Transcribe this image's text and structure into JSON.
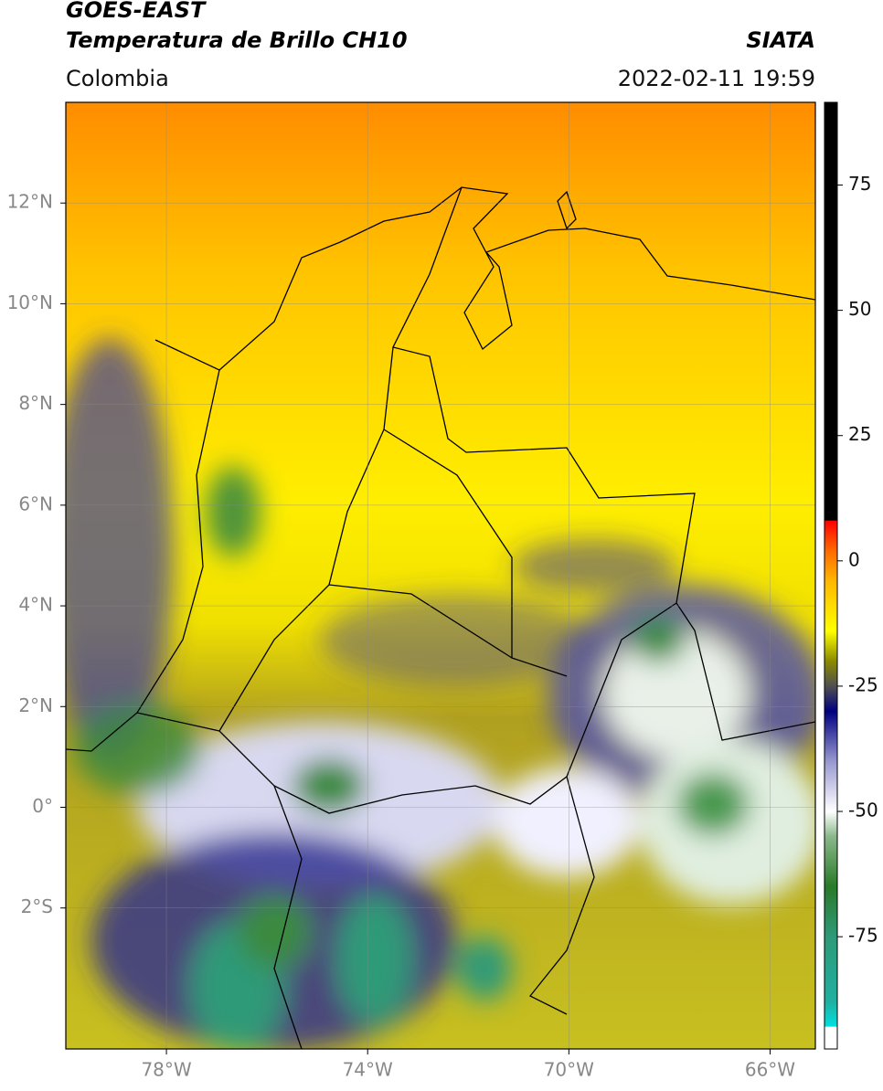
{
  "header": {
    "title": "GOES-EAST",
    "subtitle": "Temperatura de Brillo CH10",
    "source": "SIATA",
    "region": "Colombia",
    "datetime": "2022-02-11 19:59"
  },
  "map": {
    "xlim": [
      -80,
      -65.1
    ],
    "ylim": [
      -4.8,
      14
    ],
    "grid": true,
    "xticks": [
      {
        "value": -78,
        "label": "78°W"
      },
      {
        "value": -74,
        "label": "74°W"
      },
      {
        "value": -70,
        "label": "70°W"
      },
      {
        "value": -66,
        "label": "66°W"
      }
    ],
    "yticks": [
      {
        "value": 12,
        "label": "12°N"
      },
      {
        "value": 10,
        "label": "10°N"
      },
      {
        "value": 8,
        "label": "8°N"
      },
      {
        "value": 6,
        "label": "6°N"
      },
      {
        "value": 4,
        "label": "4°N"
      },
      {
        "value": 2,
        "label": "2°N"
      },
      {
        "value": 0,
        "label": "0°"
      },
      {
        "value": -2,
        "label": "2°S"
      }
    ]
  },
  "colorbar": {
    "lim": [
      -97.4,
      91.5
    ],
    "ticks": [
      75,
      50,
      25,
      0,
      -25,
      -50,
      -75
    ],
    "colormap": [
      {
        "value": -97.4,
        "color": "#ffffff"
      },
      {
        "value": -93,
        "color": "#ffffff"
      },
      {
        "value": -92.9,
        "color": "#00e0e0"
      },
      {
        "value": -88,
        "color": "#20b0a0"
      },
      {
        "value": -75,
        "color": "#2e9a78"
      },
      {
        "value": -65,
        "color": "#2a7a2a"
      },
      {
        "value": -55,
        "color": "#8ab88a"
      },
      {
        "value": -50,
        "color": "#ffffff"
      },
      {
        "value": -40,
        "color": "#9898d0"
      },
      {
        "value": -30,
        "color": "#000080"
      },
      {
        "value": -25,
        "color": "#505050"
      },
      {
        "value": -20,
        "color": "#8a8a00"
      },
      {
        "value": -14,
        "color": "#ffff00"
      },
      {
        "value": -4,
        "color": "#ffb800"
      },
      {
        "value": 2,
        "color": "#ff6a00"
      },
      {
        "value": 8,
        "color": "#ff0000"
      },
      {
        "value": 8.1,
        "color": "#000000"
      },
      {
        "value": 91.5,
        "color": "#000000"
      }
    ]
  }
}
